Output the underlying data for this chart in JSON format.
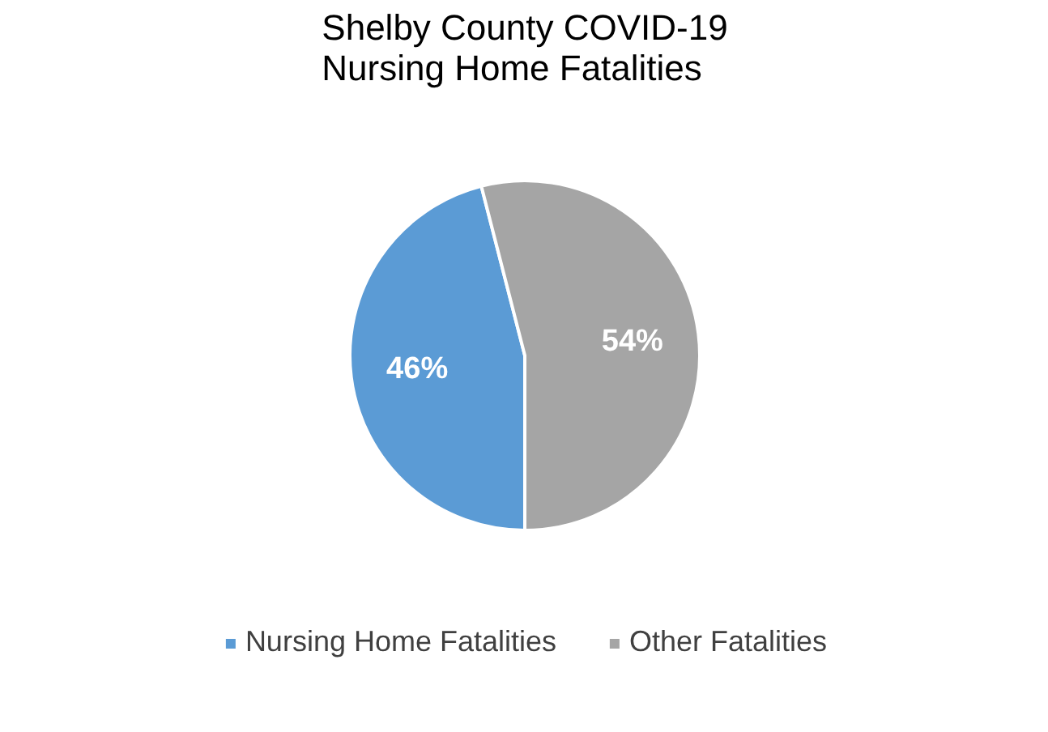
{
  "chart_data": {
    "type": "pie",
    "title": "Shelby County COVID-19\nNursing Home Fatalities",
    "categories": [
      "Nursing Home Fatalities",
      "Other Fatalities"
    ],
    "values": [
      46,
      54
    ],
    "colors": [
      "#5b9bd5",
      "#a5a5a5"
    ],
    "value_labels": [
      "46%",
      "54%"
    ],
    "legend": "bottom"
  }
}
